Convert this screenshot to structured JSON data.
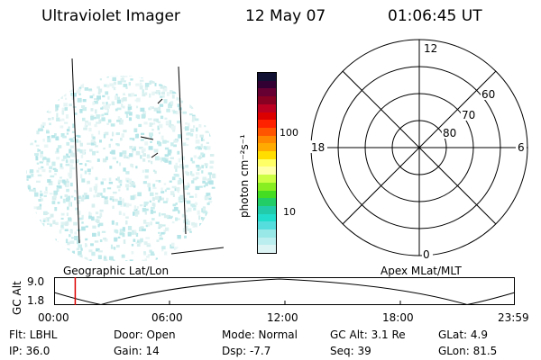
{
  "header": {
    "instrument": "Ultraviolet Imager",
    "date": "12 May 07",
    "time": "01:06:45 UT"
  },
  "colorbar": {
    "unit_label": "photon cm⁻²s⁻¹",
    "ticks": [
      "100",
      "10"
    ],
    "colors_top_to_bottom": [
      "#111133",
      "#330033",
      "#660033",
      "#880022",
      "#bb0022",
      "#dd0000",
      "#ff2200",
      "#ff5500",
      "#ff8800",
      "#ffaa00",
      "#ffdd00",
      "#ffff66",
      "#ffffaa",
      "#ccff44",
      "#88ee22",
      "#44dd22",
      "#22cc66",
      "#22ccaa",
      "#22ddcc",
      "#55dddd",
      "#99e8e8",
      "#bbeeee",
      "#ddf4f4"
    ]
  },
  "polar": {
    "mlt_labels": {
      "top": "12",
      "left": "18",
      "right": "6",
      "bottom": "0"
    },
    "lat_labels": [
      "60",
      "70",
      "80"
    ]
  },
  "labels": {
    "left_panel": "Geographic Lat/Lon",
    "right_panel": "Apex MLat/MLT"
  },
  "alt_plot": {
    "ylabel": "GC Alt",
    "ymax": "9.0",
    "ymin": "1.8",
    "time_ticks": [
      "00:00",
      "06:00",
      "12:00",
      "18:00",
      "23:59"
    ],
    "marker_time": "01:06"
  },
  "info": {
    "flt": "Flt: LBHL",
    "ip": "IP: 36.0",
    "door": "Door: Open",
    "gain": "Gain: 14",
    "mode": "Mode: Normal",
    "dsp": "Dsp:   -7.7",
    "gcalt": "GC Alt: 3.1 Re",
    "seq": "Seq: 39",
    "glat": "GLat:   4.9",
    "glon": "GLon:  81.5"
  }
}
